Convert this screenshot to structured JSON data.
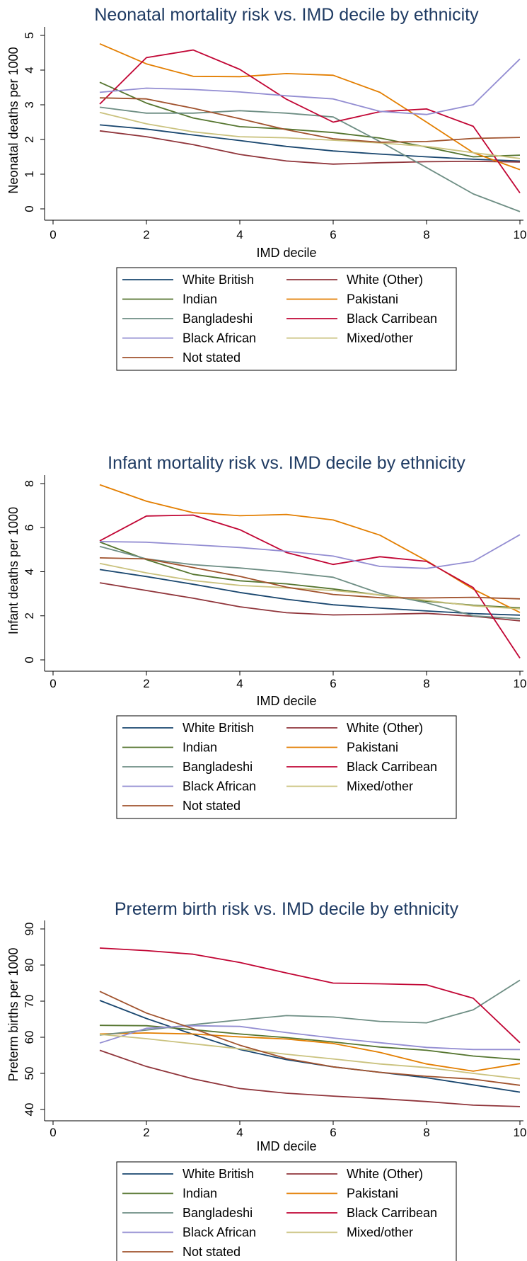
{
  "series_colors": {
    "White British": "#1a476f",
    "White (Other)": "#90353b",
    "Indian": "#55752f",
    "Pakistani": "#e37e00",
    "Bangladeshi": "#6e8e84",
    "Black Carribean": "#c10534",
    "Black African": "#938dd2",
    "Mixed/other": "#cac27e",
    "Not stated": "#a0522d"
  },
  "chart_data": [
    {
      "type": "line",
      "title": "Neonatal mortality risk vs. IMD decile by ethnicity",
      "xlabel": "IMD decile",
      "ylabel": "Neonatal deaths per 1000",
      "xlim": [
        0,
        10
      ],
      "ylim": [
        0,
        5
      ],
      "xticks": [
        "0",
        "2",
        "4",
        "6",
        "8",
        "10"
      ],
      "yticks": [
        "0",
        "1",
        "2",
        "3",
        "4",
        "5"
      ],
      "legend_position": "bottom",
      "x": [
        1,
        2,
        3,
        4,
        5,
        6,
        7,
        8,
        9,
        10
      ],
      "series": [
        {
          "name": "White British",
          "values": [
            2.42,
            2.3,
            2.13,
            1.97,
            1.8,
            1.67,
            1.58,
            1.5,
            1.43,
            1.38
          ]
        },
        {
          "name": "White (Other)",
          "values": [
            2.25,
            2.08,
            1.85,
            1.57,
            1.38,
            1.29,
            1.33,
            1.36,
            1.37,
            1.35
          ]
        },
        {
          "name": "Indian",
          "values": [
            3.65,
            3.05,
            2.62,
            2.37,
            2.3,
            2.2,
            2.04,
            1.78,
            1.5,
            1.55
          ]
        },
        {
          "name": "Pakistani",
          "values": [
            4.76,
            4.18,
            3.82,
            3.81,
            3.9,
            3.85,
            3.36,
            2.5,
            1.62,
            1.13
          ]
        },
        {
          "name": "Bangladeshi",
          "values": [
            2.93,
            2.76,
            2.76,
            2.83,
            2.76,
            2.65,
            1.94,
            1.19,
            0.43,
            -0.08
          ]
        },
        {
          "name": "Black Carribean",
          "values": [
            3.02,
            4.36,
            4.58,
            4.02,
            3.16,
            2.5,
            2.8,
            2.88,
            2.38,
            0.46
          ]
        },
        {
          "name": "Black African",
          "values": [
            3.36,
            3.48,
            3.44,
            3.37,
            3.26,
            3.17,
            2.81,
            2.72,
            3.0,
            4.32
          ]
        },
        {
          "name": "Mixed/other",
          "values": [
            2.78,
            2.45,
            2.22,
            2.08,
            2.05,
            1.98,
            1.9,
            1.8,
            1.62,
            1.45
          ]
        },
        {
          "name": "Not stated",
          "values": [
            3.2,
            3.17,
            2.9,
            2.6,
            2.28,
            2.02,
            1.92,
            1.94,
            2.03,
            2.06
          ]
        }
      ]
    },
    {
      "type": "line",
      "title": "Infant mortality risk vs. IMD decile by ethnicity",
      "xlabel": "IMD decile",
      "ylabel": "Infant deaths per 1000",
      "xlim": [
        0,
        10
      ],
      "ylim": [
        0,
        8
      ],
      "xticks": [
        "0",
        "2",
        "4",
        "6",
        "8",
        "10"
      ],
      "yticks": [
        "0",
        "2",
        "4",
        "6",
        "8"
      ],
      "legend_position": "bottom",
      "x": [
        1,
        2,
        3,
        4,
        5,
        6,
        7,
        8,
        9,
        10
      ],
      "series": [
        {
          "name": "White British",
          "values": [
            4.1,
            3.78,
            3.43,
            3.06,
            2.75,
            2.5,
            2.35,
            2.22,
            2.1,
            2.03
          ]
        },
        {
          "name": "White (Other)",
          "values": [
            3.5,
            3.15,
            2.8,
            2.41,
            2.14,
            2.04,
            2.07,
            2.11,
            1.98,
            1.77
          ]
        },
        {
          "name": "Indian",
          "values": [
            5.35,
            4.55,
            3.88,
            3.59,
            3.45,
            3.22,
            2.94,
            2.66,
            2.48,
            2.36
          ]
        },
        {
          "name": "Pakistani",
          "values": [
            7.95,
            7.2,
            6.68,
            6.54,
            6.6,
            6.35,
            5.66,
            4.5,
            3.21,
            2.15
          ]
        },
        {
          "name": "Bangladeshi",
          "values": [
            5.15,
            4.58,
            4.32,
            4.17,
            3.98,
            3.75,
            3.02,
            2.59,
            2.0,
            1.87
          ]
        },
        {
          "name": "Black Carribean",
          "values": [
            5.4,
            6.53,
            6.57,
            5.91,
            4.87,
            4.33,
            4.68,
            4.47,
            3.28,
            0.08
          ]
        },
        {
          "name": "Black African",
          "values": [
            5.37,
            5.34,
            5.22,
            5.1,
            4.93,
            4.71,
            4.24,
            4.15,
            4.47,
            5.68
          ]
        },
        {
          "name": "Mixed/other",
          "values": [
            4.38,
            3.95,
            3.6,
            3.38,
            3.27,
            3.15,
            2.95,
            2.7,
            2.45,
            2.32
          ]
        },
        {
          "name": "Not stated",
          "values": [
            4.63,
            4.58,
            4.19,
            3.79,
            3.3,
            2.97,
            2.82,
            2.81,
            2.84,
            2.77
          ]
        }
      ]
    },
    {
      "type": "line",
      "title": "Preterm birth risk vs. IMD decile by ethnicity",
      "xlabel": "IMD decile",
      "ylabel": "Preterm births per 1000",
      "xlim": [
        0,
        10
      ],
      "ylim": [
        40,
        90
      ],
      "xticks": [
        "0",
        "2",
        "4",
        "6",
        "8",
        "10"
      ],
      "yticks": [
        "40",
        "50",
        "60",
        "70",
        "80",
        "90"
      ],
      "legend_position": "bottom",
      "x": [
        1,
        2,
        3,
        4,
        5,
        6,
        7,
        8,
        9,
        10
      ],
      "series": [
        {
          "name": "White British",
          "values": [
            70.2,
            65.2,
            60.8,
            56.6,
            53.8,
            51.8,
            50.3,
            48.8,
            46.8,
            44.8
          ]
        },
        {
          "name": "White (Other)",
          "values": [
            56.4,
            51.9,
            48.5,
            45.8,
            44.5,
            43.7,
            43.0,
            42.2,
            41.2,
            40.8
          ]
        },
        {
          "name": "Indian",
          "values": [
            63.3,
            63.2,
            62.1,
            60.9,
            59.9,
            58.7,
            57.3,
            56.4,
            54.8,
            53.8
          ]
        },
        {
          "name": "Pakistani",
          "values": [
            60.9,
            61.2,
            60.9,
            60.1,
            59.5,
            58.3,
            55.8,
            52.6,
            50.6,
            52.7
          ]
        },
        {
          "name": "Bangladeshi",
          "values": [
            60.6,
            62.0,
            63.5,
            64.8,
            66.0,
            65.6,
            64.4,
            64.0,
            67.6,
            75.8
          ]
        },
        {
          "name": "Black Carribean",
          "values": [
            84.7,
            84.0,
            83.0,
            80.7,
            77.8,
            75.0,
            74.8,
            74.5,
            70.8,
            58.5
          ]
        },
        {
          "name": "Black African",
          "values": [
            58.4,
            62.5,
            63.2,
            63.0,
            61.3,
            59.8,
            58.5,
            57.2,
            56.6,
            56.6
          ]
        },
        {
          "name": "Mixed/other",
          "values": [
            60.8,
            59.6,
            58.2,
            56.8,
            55.3,
            54.0,
            52.6,
            51.6,
            50.0,
            48.5
          ]
        },
        {
          "name": "Not stated",
          "values": [
            72.7,
            66.7,
            62.4,
            57.8,
            54.1,
            51.8,
            50.3,
            49.2,
            48.4,
            46.7
          ]
        }
      ]
    }
  ],
  "legend": {
    "rows": [
      [
        "White British",
        "White (Other)"
      ],
      [
        "Indian",
        "Pakistani"
      ],
      [
        "Bangladeshi",
        "Black Carribean"
      ],
      [
        "Black African",
        "Mixed/other"
      ],
      [
        "Not stated"
      ]
    ]
  }
}
